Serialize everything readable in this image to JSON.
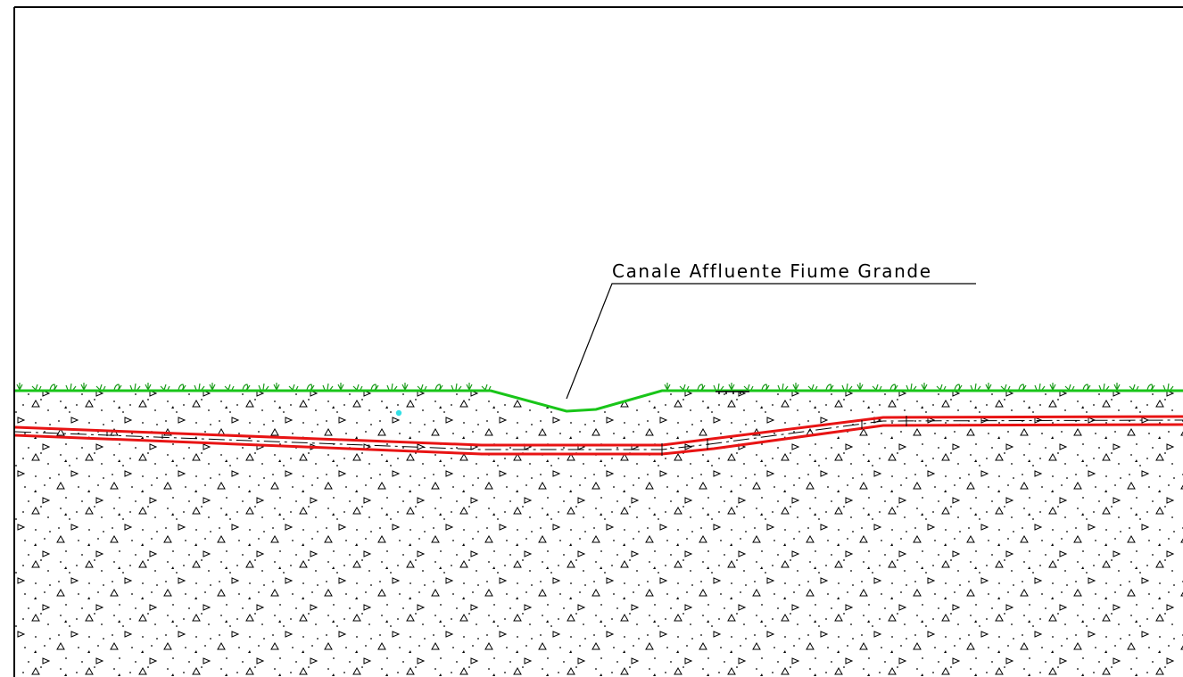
{
  "drawing": {
    "annotation": {
      "label": "Canale Affluente Fiume Grande"
    },
    "colors": {
      "ground_line": "#19c519",
      "pipe_line": "#e81414",
      "pipe_axis": "#000000",
      "frame": "#000000",
      "soil_hatch": "#000000",
      "grass": "#1a9a1a",
      "marker": "#33e0e6",
      "background": "#ffffff"
    },
    "elements": {
      "ground_profile": "terrain-surface",
      "channel": "canal-section",
      "pipeline": "double-wall-pipe",
      "soil": "concrete-aggregate-hatch",
      "vegetation": "grass-symbols"
    }
  }
}
